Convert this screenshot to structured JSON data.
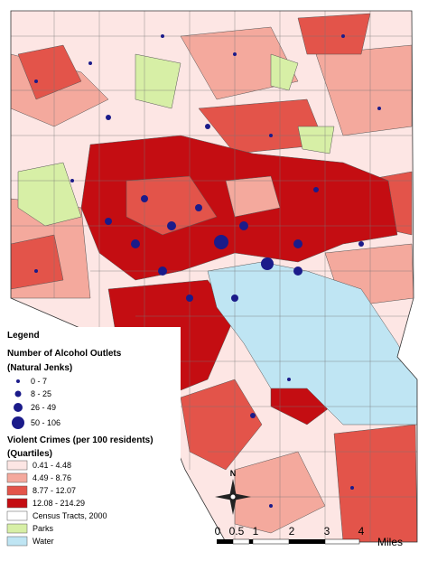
{
  "legend": {
    "title": "Legend",
    "outlets": {
      "title": "Number of Alcohol Outlets",
      "subtitle": "(Natural Jenks)",
      "classes": [
        "0 - 7",
        "8 - 25",
        "26 - 49",
        "50 - 106"
      ]
    },
    "crimes": {
      "title": "Violent Crimes (per 100 residents)",
      "subtitle": "(Quartiles)",
      "classes": [
        "0.41 - 4.48",
        "4.49 - 8.76",
        "8.77 - 12.07",
        "12.08 - 214.29"
      ]
    },
    "other": [
      "Census Tracts, 2000",
      "Parks",
      "Water"
    ]
  },
  "compass": "N",
  "scale": {
    "labels": [
      "0",
      "0.5",
      "1",
      "2",
      "3",
      "4"
    ],
    "unit": "Miles"
  }
}
